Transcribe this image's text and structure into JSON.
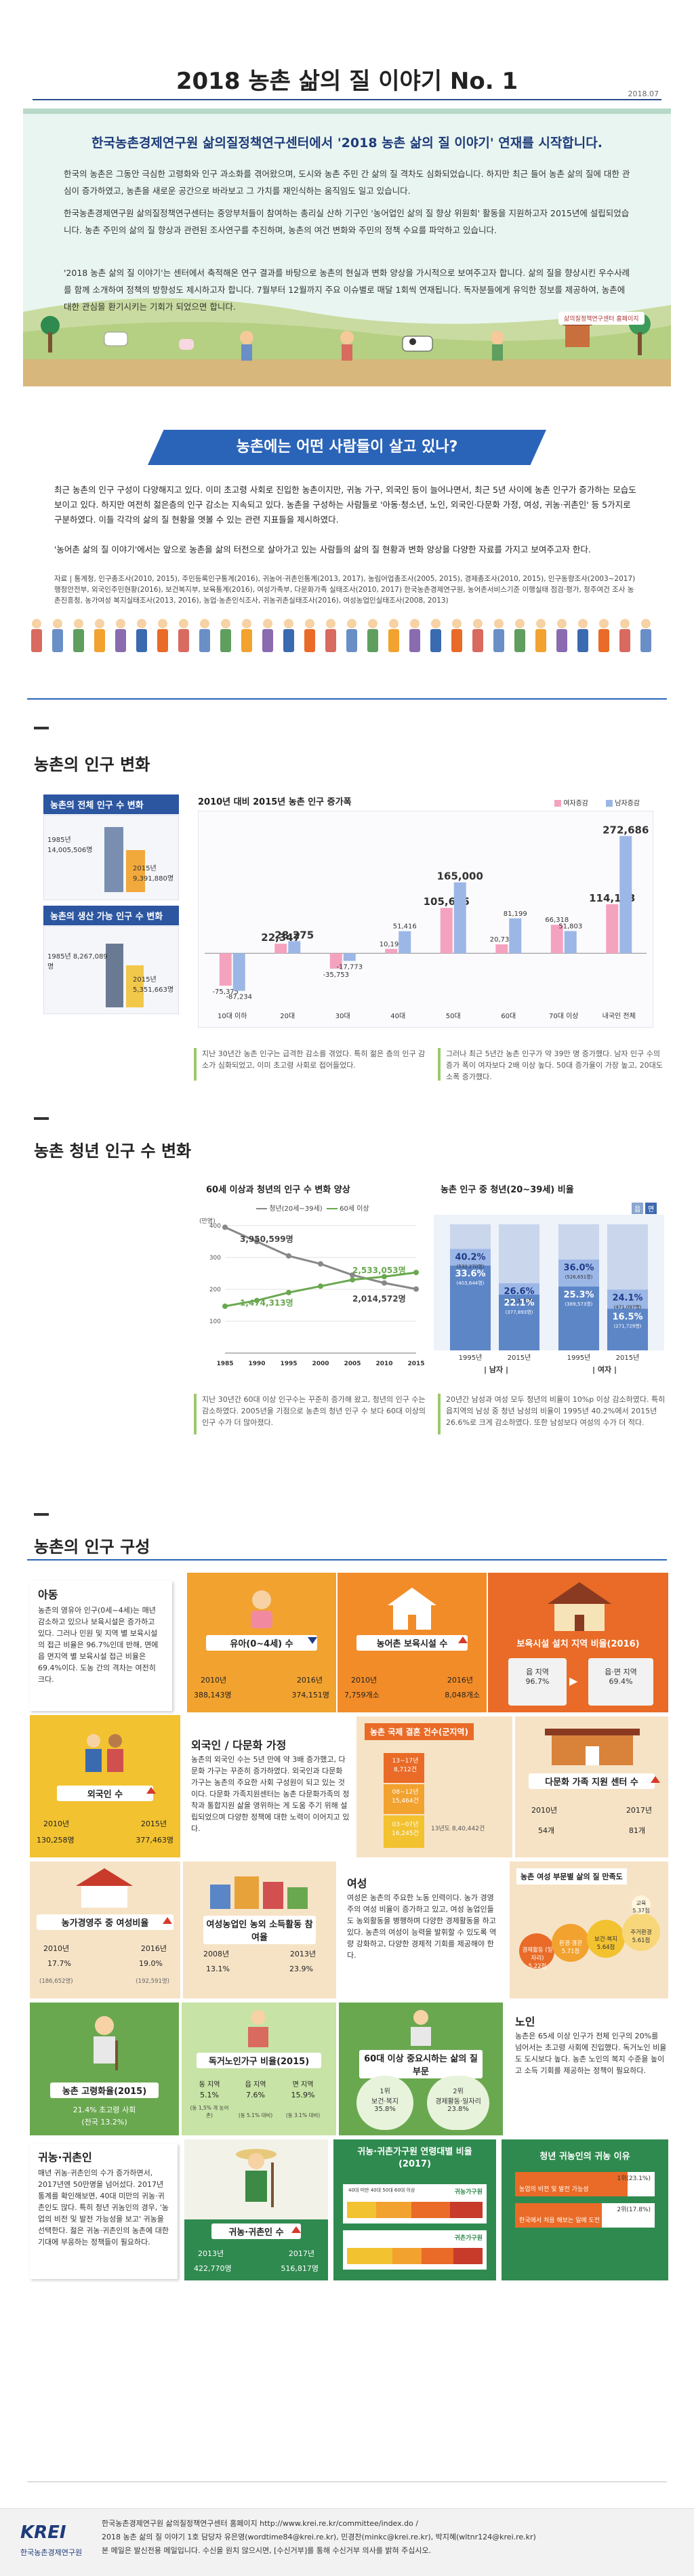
{
  "header": {
    "title": "2018 농촌 삶의 질 이야기 No. 1",
    "date": "2018.07"
  },
  "intro": {
    "headline": "한국농촌경제연구원 삶의질정책연구센터에서 '2018 농촌 삶의 질 이야기' 연재를 시작합니다.",
    "p1": "한국의 농촌은 그동안 극심한 고령화와 인구 과소화를 겪어왔으며, 도시와 농촌 주민 간 삶의 질 격차도 심화되었습니다. 하지만 최근 들어 농촌 삶의 질에 대한 관심이 증가하였고, 농촌을 새로운 공간으로 바라보고 그 가치를 재인식하는 움직임도 일고 있습니다.",
    "p2": "한국농촌경제연구원 삶의질정책연구센터는 중앙부처들이 참여하는 총리실 산하 기구인 '농어업인 삶의 질 향상 위원회' 활동을 지원하고자 2015년에 설립되었습니다. 농촌 주민의 삶의 질 향상과 관련된 조사연구를 추진하며, 농촌의 여건 변화와 주민의 정책 수요를 파악하고 있습니다.",
    "p3": "'2018 농촌 삶의 질 이야기'는 센터에서 축적해온 연구 결과를 바탕으로 농촌의 현실과 변화 양상을 가시적으로 보여주고자 합니다. 삶의 질을 향상시킨 우수사례를 함께 소개하여 정책의 방향성도 제시하고자 합니다. 7월부터 12월까지 주요 이슈별로 매달 1회씩 연재됩니다. 독자분들에게 유익한 정보를 제공하여, 농촌에 대한 관심을 환기시키는 기회가 되었으면 합니다.",
    "center": "삶의질정책연구센터 홈페이지"
  },
  "banner": "농촌에는 어떤 사람들이 살고 있나?",
  "lead": {
    "text": "최근 농촌의 인구 구성이 다양해지고 있다. 이미 초고령 사회로 진입한 농촌이지만, 귀농 가구, 외국인 등이 늘어나면서, 최근 5년 사이에 농촌 인구가 증가하는 모습도 보이고 있다. 하지만 여전히 젊은층의 인구 감소는 지속되고 있다. 농촌을 구성하는 사람들로 '아동·청소년, 노인, 외국인·다문화 가정, 여성, 귀농·귀촌인' 등 5가지로 구분하였다. 이들 각각의 삶의 질 현황을 엿볼 수 있는 관련 지표들을 제시하였다.",
    "text2": "'농어촌 삶의 질 이야기'에서는 앞으로 농촌을 삶의 터전으로 살아가고 있는 사람들의 삶의 질 현황과 변화 양상을 다양한 자료를 가지고 보여주고자 한다.",
    "refs": "자료 | 통계청, 인구총조사(2010, 2015), 주민등록인구통계(2016), 귀농어·귀촌인통계(2013, 2017), 농림어업총조사(2005, 2015), 경제총조사(2010, 2015), 인구동향조사(2003~2017) 행정안전부, 외국인주민현황(2016), 보건복지부, 보육통계(2016), 여성가족부, 다문화가족 실태조사(2010, 2017) 한국농촌경제연구원, 농어촌서비스기준 이행실태 점검·평가, 정주여건 조사 농촌진흥청, 농가여성 복지실태조사(2013, 2016), 농업·농촌인식조사, 귀농귀촌실태조사(2016), 여성농업인실태조사(2008, 2013)"
  },
  "sec1": {
    "title": "농촌의 인구 변화",
    "box1": "농촌의 전체 인구 수 변화",
    "total_2010": "1985년 14,005,506명",
    "total_2015": "2015년 9,391,880명",
    "box2": "농촌의 생산 가능 인구 수 변화",
    "prod_1985": "1985년 8,267,089명",
    "prod_2015": "2015년 5,351,663명",
    "chart_title": "2010년 대비 2015년 농촌 인구 증가폭",
    "legend_f": "여자증감",
    "legend_m": "남자증감",
    "note1": "지난 30년간 농촌 인구는 급격한 감소를 겪었다. 특히 젊은 층의 인구 감소가 심화되었고, 이미 초고령 사회로 접어들었다.",
    "note2": "그러나 최근 5년간 농촌 인구가 약 39만 명 증가했다. 남자 인구 수의 증가 폭이 여자보다 2배 이상 높다. 50대 증가율이 가장 높고, 20대도 소폭 증가했다."
  },
  "sec2": {
    "title": "농촌 청년 인구 수 변화",
    "left_title": "60세 이상과 청년의 인구 수 변화 양상",
    "right_title": "농촌 인구 중 청년(20~39세) 비율",
    "legend_young": "청년(20세~39세)",
    "legend_old": "60세 이상",
    "unit": "(만명)",
    "lab_young_1985": "3,950,599명",
    "lab_old_1985": "1,474,313명",
    "lab_young_2015": "2,014,572명",
    "lab_old_2015": "2,533,053명",
    "note1": "지난 30년간 60대 이상 인구수는 꾸준히 증가해 왔고, 청년의 인구 수는 감소하였다. 2005년을 기점으로 농촌의 청년 인구 수 보다 60대 이상의 인구 수가 더 많아졌다.",
    "note2": "20년간 남성과 여성 모두 청년의 비율이 10%p 이상 감소하였다. 특히 읍지역의 남성 중 청년 남성의 비율이 1995년 40.2%에서 2015년 26.6%로 크게 감소하였다. 또한 남성보다 여성의 수가 더 적다.",
    "ratio_tab_a": "읍",
    "ratio_tab_b": "면",
    "group_m": "남자",
    "group_f": "여자"
  },
  "sec3": {
    "title": "농촌의 인구 구성",
    "child": {
      "title": "아동",
      "desc": "농촌의 영유아 인구(0세~4세)는 매년 감소하고 있으나 보육시설은 증가하고 있다. 그러나 민원 및 지역 별 보육시설의 접근 비율은 96.7%인데 반해, 면에 읍 면지역 별 보육시설 접근 비율은 69.4%이다. 도농 간의 격차는 여전히 크다."
    },
    "infant": {
      "title": "유아(0~4세) 수",
      "y1": "2010년",
      "y2": "2016년",
      "v1": "388,143명",
      "v2": "374,151명"
    },
    "daycare": {
      "title": "농어촌 보육시설 수",
      "y1": "2010년",
      "y2": "2016년",
      "v1": "7,759개소",
      "v2": "8,048개소"
    },
    "access": {
      "title": "보육시설 설치 지역 비율(2016)",
      "a1": "읍 지역",
      "a2": "읍·면 지역",
      "v1": "96.7%",
      "v2": "69.4%"
    },
    "foreigner": {
      "title": "외국인 수",
      "y1": "2010년",
      "y2": "2015년",
      "v1": "130,258명",
      "v2": "377,463명"
    },
    "multi": {
      "title": "외국인 / 다문화 가정",
      "desc": "농촌의 외국인 수는 5년 만에 약 3배 증가했고, 다문화 가구는 꾸준히 증가하였다. 외국인과 다문화 가구는 농촌의 주요한 사회 구성원이 되고 있는 것이다. 다문화 가족지원센터는 농촌 다문화가족의 정착과 통합지원 삶을 영위하는 게 도움 주기 위해 설립되었으며 다양한 정책에 대한 노력이 이어지고 있다."
    },
    "intl_marriage": {
      "title": "농촌 국제 결혼 건수(군지역)",
      "a": "08~12년 15,464건",
      "b": "13~17년 8,712건",
      "c": "03~07년 16,245건",
      "d": "13년도 8,40,442건"
    },
    "center_count": {
      "title": "다문화 가족 지원 센터 수",
      "y1": "2010년",
      "y2": "2017년",
      "v1": "54개",
      "v2": "81개"
    },
    "farm_woman": {
      "title": "농가경영주 중 여성비율",
      "y1": "2010년",
      "y2": "2016년",
      "v1": "17.7%",
      "v2": "19.0%",
      "s1": "(186,652명)",
      "s2": "(192,591명)"
    },
    "female_biz": {
      "title": "여성농업인 농외 소득활동 참여율",
      "y1": "2008년",
      "y2": "2013년",
      "v1": "13.1%",
      "v2": "23.9%"
    },
    "woman": {
      "title": "여성",
      "desc": "여성은 농촌의 주요한 노동 인력이다. 농가 경영주의 여성 비율이 증가하고 있고, 여성 농업인들도 농외활동을 병행하며 다양한 경제활동을 하고 있다. 농촌의 여성이 능력을 발휘할 수 있도록 역량 강화하고, 다양한 경제적 기회를 제공해야 한다."
    },
    "woman_sat": {
      "title": "농촌 여성 부문별 삶의 질 만족도",
      "b1": "경제활동 (일자리)",
      "b2": "환경·경관",
      "b3": "보건·복지",
      "b4": "주거환경",
      "v1": "5.22점",
      "v2": "5.71점",
      "v3": "5.64점",
      "v4": "5.61점",
      "top": "교육",
      "top_v": "5.37점"
    },
    "elder_rate": {
      "title": "농촌 고령화율(2015)",
      "v": "21.4% 초고령 사회",
      "s": "(전국 13.2%)"
    },
    "single_elder": {
      "title": "독거노인가구 비율(2015)",
      "a": "동 지역",
      "b": "읍 지역",
      "c": "면 지역",
      "v1": "5.1%",
      "v2": "7.6%",
      "v3": "15.9%",
      "s1": "(동 1,5% 개 농어촌)",
      "s2": "(동 5.1% 대비)",
      "s3": "(동 3.1% 대비)"
    },
    "elder_need": {
      "title": "60대 이상 중요시하는 삶의 질 부문",
      "r1": "1위",
      "r2": "2위",
      "n1": "보건·복지",
      "n2": "경제활동·일자리",
      "v1": "35.8%",
      "v2": "23.8%"
    },
    "elder": {
      "title": "노인",
      "desc": "농촌은 65세 이상 인구가 전체 인구의 20%를 넘어서는 초고령 사회에 진입했다. 독거노인 비율도 도시보다 높다. 농촌 노인의 복지 수준을 높이고 소득 기회를 제공하는 정책이 필요하다."
    },
    "returnee": {
      "title": "귀농·귀촌인",
      "desc": "매년 귀농·귀촌인의 수가 증가하면서, 2017년엔 50만명을 넘어섰다. 2017년 통계를 확인해보면, 40대 미만의 귀농·귀촌인도 많다. 특히 청년 귀농인의 경우, '농업의 비전 및 발전 가능성을 보고' 귀농을 선택한다. 젊은 귀농·귀촌인의 농촌에 대한 기대에 부응하는 정책들이 필요하다."
    },
    "returnee_count": {
      "title": "귀농·귀촌인 수",
      "y1": "2013년",
      "y2": "2017년",
      "v1": "422,770명",
      "v2": "516,817명"
    },
    "returnee_age": {
      "title": "귀농·귀촌가구원 연령대별 비율(2017)",
      "row1": "귀농가구원",
      "row2": "귀촌가구원",
      "a1": "40대 미만",
      "a2": "40대",
      "a3": "50대",
      "a4": "60대 이상"
    },
    "young_reason": {
      "title": "청년 귀농인의 귀농 이유",
      "r1": "농업의 비전 및 발전 가능성",
      "r2": "한국에서 처음 해보는 일에 도전",
      "v1": "1위(23.1%)",
      "v2": "2위(17.8%)"
    }
  },
  "footer": {
    "logo": "KREI",
    "org": "한국농촌경제연구원",
    "line1": "한국농촌경제연구원 삶의질정책연구센터 홈페이지 http://www.krei.re.kr/committee/index.do /",
    "line2": "2018 농촌 삶의 질 이야기 1호 담당자 유은영(wordtime84@krei.re.kr), 민경찬(minkc@krei.re.kr), 박지혜(wltnr124@krei.re.kr)",
    "line3": "본 메일은 발신전용 메일입니다. 수신을 원치 않으시면, [수신거부]를 통해 수신거부 의사를 밝혀 주십시오."
  },
  "chart_data": [
    {
      "type": "bar",
      "title": "2010년 대비 2015년 농촌 인구 증가폭",
      "categories": [
        "10대 이하",
        "20대",
        "30대",
        "40대",
        "50대",
        "60대",
        "70대 이상",
        "내국인 전체"
      ],
      "series": [
        {
          "name": "여자증감",
          "values": [
            -75375,
            22347,
            -35753,
            10195,
            105675,
            20736,
            66318,
            114143
          ]
        },
        {
          "name": "남자증감",
          "values": [
            -87234,
            28275,
            -17773,
            51416,
            165000,
            81199,
            51803,
            272686
          ]
        }
      ],
      "colors": {
        "f": "#f4a3bf",
        "m": "#9cb7e6"
      }
    },
    {
      "type": "line",
      "title": "60세 이상과 청년의 인구 수 변화 양상",
      "x": [
        1985,
        1990,
        1995,
        2000,
        2005,
        2010,
        2015
      ],
      "series": [
        {
          "name": "청년(20세~39세)",
          "values": [
            395,
            350,
            305,
            280,
            245,
            220,
            201
          ]
        },
        {
          "name": "60세 이상",
          "values": [
            147,
            165,
            190,
            210,
            230,
            240,
            253
          ]
        }
      ],
      "ylabel": "(만명)",
      "ylim": [
        0,
        400
      ],
      "yticks": [
        100,
        200,
        300,
        400
      ],
      "colors": {
        "young": "#888888",
        "old": "#6aa84f"
      }
    },
    {
      "type": "bar",
      "title": "농촌 인구 중 청년(20~39세) 비율",
      "categories": [
        "1995년 남자",
        "2015년 남자",
        "1995년 여자",
        "2015년 여자"
      ],
      "series": [
        {
          "name": "읍",
          "values": [
            40.2,
            26.6,
            36.0,
            24.1
          ]
        },
        {
          "name": "면",
          "values": [
            33.6,
            22.1,
            25.3,
            16.5
          ]
        }
      ],
      "sub_labels": [
        "(532,270명)",
        "(403,644명)",
        "(519,129명)",
        "(377,893명)",
        "(526,651명)",
        "(389,573명)",
        "(471,097명)",
        "(271,729명)"
      ]
    }
  ]
}
